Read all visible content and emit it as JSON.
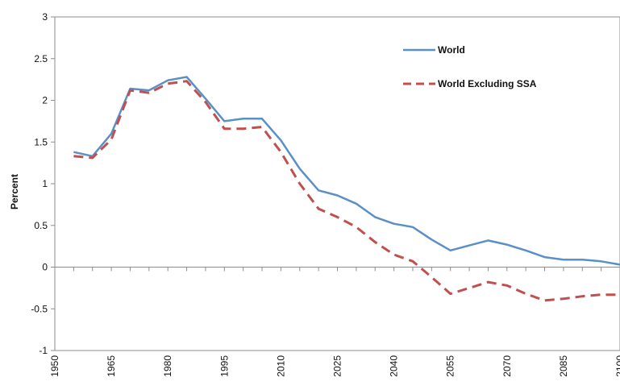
{
  "chart_data": {
    "type": "line",
    "title": "",
    "xlabel": "",
    "ylabel": "Percent",
    "x_ticks": [
      "1950",
      "1965",
      "1980",
      "1995",
      "2010",
      "2025",
      "2040",
      "2055",
      "2070",
      "2085",
      "2100"
    ],
    "xlim": [
      1950,
      2100
    ],
    "ylim": [
      -1,
      3
    ],
    "y_ticks": [
      -1,
      -0.5,
      0,
      0.5,
      1,
      1.5,
      2,
      2.5,
      3
    ],
    "y_tick_labels": [
      "-1",
      "-0.5",
      "0",
      "0.5",
      "1",
      "1.5",
      "2",
      "2.5",
      "3"
    ],
    "grid": false,
    "legend_position": "top-right",
    "x": [
      1955,
      1960,
      1965,
      1970,
      1975,
      1980,
      1985,
      1990,
      1995,
      2000,
      2005,
      2010,
      2015,
      2020,
      2025,
      2030,
      2035,
      2040,
      2045,
      2050,
      2055,
      2060,
      2065,
      2070,
      2075,
      2080,
      2085,
      2090,
      2095,
      2100
    ],
    "series": [
      {
        "name": "World",
        "color": "#5b8fc7",
        "style": "solid",
        "values": [
          1.38,
          1.33,
          1.6,
          2.14,
          2.12,
          2.24,
          2.28,
          2.02,
          1.75,
          1.78,
          1.78,
          1.52,
          1.18,
          0.92,
          0.86,
          0.76,
          0.6,
          0.52,
          0.48,
          0.33,
          0.2,
          0.26,
          0.32,
          0.27,
          0.2,
          0.12,
          0.09,
          0.09,
          0.07,
          0.03
        ]
      },
      {
        "name": "World Excluding SSA",
        "color": "#c0504d",
        "style": "dashed",
        "values": [
          1.33,
          1.31,
          1.53,
          2.12,
          2.09,
          2.2,
          2.23,
          1.98,
          1.66,
          1.66,
          1.68,
          1.38,
          1.0,
          0.7,
          0.6,
          0.48,
          0.3,
          0.15,
          0.07,
          -0.12,
          -0.32,
          -0.25,
          -0.18,
          -0.22,
          -0.32,
          -0.4,
          -0.38,
          -0.35,
          -0.33,
          -0.33
        ]
      }
    ]
  }
}
